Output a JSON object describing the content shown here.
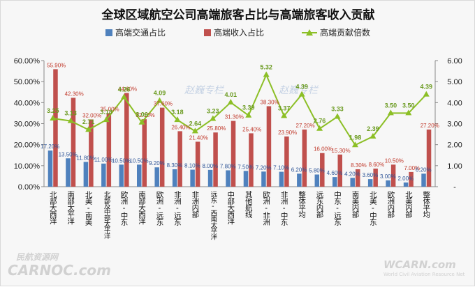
{
  "chart_data": {
    "type": "bar",
    "title": "全球区域航空公司高端旅客占比与高端旅客收入贡献",
    "categories": [
      "北部大西洋",
      "南部太平洋",
      "北美-南美",
      "北部及中部太平洋",
      "欧洲-中东",
      "南部大西洋",
      "欧洲-远东",
      "非洲-远东",
      "非洲内部",
      "远东-西南太平洋",
      "中部大西洋",
      "其他航线",
      "欧洲-非洲",
      "非洲-中东",
      "整体平均",
      "远东内部",
      "中东-远东",
      "南美内部",
      "北美-中东",
      "欧洲内部",
      "北美内部",
      "整体平均"
    ],
    "series": [
      {
        "name": "高端交通占比",
        "color": "#4f81bd",
        "axis": "left",
        "values": [
          17.2,
          13.5,
          11.8,
          11.0,
          10.5,
          10.5,
          9.2,
          8.3,
          8.1,
          8.0,
          7.8,
          7.5,
          7.2,
          7.1,
          6.2,
          5.8,
          4.6,
          4.2,
          3.6,
          3.0,
          2.0,
          6.2
        ],
        "labels": [
          "17.20%",
          "13.50%",
          "11.80%",
          "11.00%",
          "10.50%",
          "10.50%",
          "9.20%",
          "8.30%",
          "8.10%",
          "8.00%",
          "7.80%",
          "7.50%",
          "7.20%",
          "7.10%",
          "6.20%",
          "5.80%",
          "4.60%",
          "4.20%",
          "3.60%",
          "3.00%",
          "2.00%",
          "6.20%"
        ]
      },
      {
        "name": "高端收入占比",
        "color": "#c0504d",
        "axis": "left",
        "values": [
          55.9,
          42.3,
          32.0,
          35.0,
          44.6,
          32.1,
          37.6,
          26.4,
          21.4,
          25.8,
          31.3,
          25.4,
          38.3,
          23.9,
          27.2,
          16.0,
          15.3,
          8.3,
          8.6,
          10.5,
          7.0,
          27.2
        ],
        "labels": [
          "55.90%",
          "42.30%",
          "32.00%",
          "35.00%",
          "44.60%",
          "32.10%",
          "37.60%",
          "26.40%",
          "21.40%",
          "25.80%",
          "31.30%",
          "25.40%",
          "38.30%",
          "23.90%",
          "27.20%",
          "16.00%",
          "15.30%",
          "8.30%",
          "8.60%",
          "10.50%",
          "7.00%",
          "27.20%"
        ]
      },
      {
        "name": "高端贡献倍数",
        "color": "#8cbf26",
        "axis": "right",
        "type": "line",
        "values": [
          3.25,
          3.13,
          2.71,
          3.18,
          4.26,
          3.06,
          4.09,
          3.18,
          2.64,
          3.23,
          4.01,
          3.39,
          5.32,
          3.37,
          4.39,
          2.76,
          3.33,
          1.98,
          2.39,
          3.5,
          3.5,
          4.39
        ],
        "labels": [
          "3.25",
          "3.13",
          "2.71",
          "3.18",
          "4.26",
          "3.06",
          "4.09",
          "3.18",
          "2.64",
          "3.23",
          "4.01",
          "3.39",
          "5.32",
          "3.37",
          "4.39",
          "2.76",
          "3.33",
          "1.98",
          "2.39",
          "3.50",
          "3.50",
          "4.39"
        ]
      }
    ],
    "y_left": {
      "min": 0,
      "max": 60,
      "ticks": [
        "0.00%",
        "10.00%",
        "20.00%",
        "30.00%",
        "40.00%",
        "50.00%",
        "60.00%"
      ]
    },
    "y_right": {
      "min": 0,
      "max": 6,
      "ticks": [
        "-",
        "1.00",
        "2.00",
        "3.00",
        "4.00",
        "5.00",
        "6.00"
      ]
    },
    "legend": {
      "placement": "top",
      "items": [
        "高端交通占比",
        "高端收入占比",
        "高端贡献倍数"
      ]
    },
    "grid": false,
    "watermarks": [
      "赵巍专栏",
      "赵巍专栏"
    ],
    "logos": {
      "left_main": "CARNOC.com",
      "left_cn": "民航资源网",
      "right_main": "WCARN.com",
      "right_sub": "World Civil Aviation Resource Net"
    }
  }
}
